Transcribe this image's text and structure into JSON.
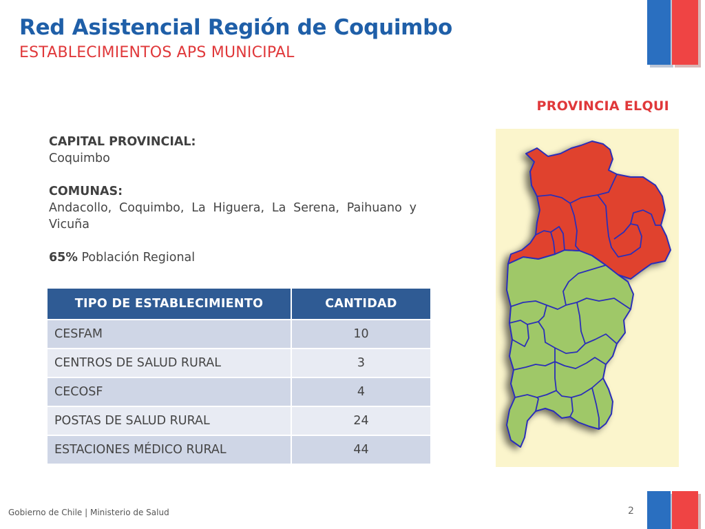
{
  "header": {
    "title": "Red Asistencial Región de Coquimbo",
    "subtitle": "ESTABLECIMIENTOS APS MUNICIPAL"
  },
  "province_title": "PROVINCIA ELQUI",
  "info": {
    "capital_label": "CAPITAL PROVINCIAL:",
    "capital_value": "Coquimbo",
    "comunas_label": "COMUNAS:",
    "comunas_value": "Andacollo, Coquimbo, La Higuera, La Serena, Paihuano y Vicuña",
    "population_pct": "65%",
    "population_text": "Población Regional"
  },
  "table": {
    "headers": [
      "TIPO DE ESTABLECIMIENTO",
      "CANTIDAD"
    ],
    "rows": [
      [
        "CESFAM",
        "10"
      ],
      [
        "CENTROS DE SALUD RURAL",
        "3"
      ],
      [
        "CECOSF",
        "4"
      ],
      [
        "POSTAS DE SALUD RURAL",
        "24"
      ],
      [
        "ESTACIONES MÉDICO RURAL",
        "44"
      ]
    ]
  },
  "map": {
    "highlight_color": "#e0432f",
    "base_color": "#9fc867",
    "border_color": "#2b2fb8",
    "background_color": "#fbf5cc"
  },
  "colors": {
    "title_blue": "#1f5fa8",
    "accent_red": "#e0383a",
    "table_header": "#2f5b94"
  },
  "footer": {
    "text": "Gobierno de Chile | Ministerio de Salud",
    "page_number": "2"
  }
}
